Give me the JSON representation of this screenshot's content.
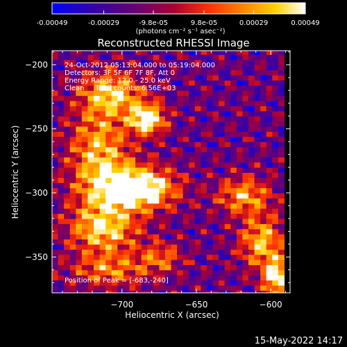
{
  "colorbar": {
    "tick_labels": [
      "-0.00049",
      "-0.00029",
      "-9.8e-05",
      "9.8e-05",
      "0.00029",
      "0.00049"
    ],
    "tick_values": [
      -0.00049,
      -0.00029,
      -9.8e-05,
      9.8e-05,
      0.00029,
      0.00049
    ],
    "unit_label": "(photons cm⁻² s⁻¹ asec⁻²)",
    "range": [
      -0.00049,
      0.00049
    ],
    "colormap": [
      "#0000ff",
      "#3300aa",
      "#660077",
      "#aa0033",
      "#ff3300",
      "#ff8800",
      "#ffd000",
      "#ffffff"
    ]
  },
  "chart_data": {
    "type": "heatmap",
    "title": "Reconstructed RHESSI Image",
    "xlabel": "Heliocentric X (arcsec)",
    "ylabel": "Heliocentric Y (arcsec)",
    "xlim": [
      -747,
      -587
    ],
    "ylim": [
      -378,
      -189
    ],
    "x_ticks": [
      -700,
      -650,
      -600
    ],
    "x_tick_labels": [
      "−700",
      "−650",
      "−600"
    ],
    "y_ticks": [
      -200,
      -250,
      -300,
      -350
    ],
    "y_tick_labels": [
      "−200",
      "−250",
      "−300",
      "−350"
    ],
    "info_lines": [
      "24-Oct-2012 05:13:04.000 to 05:19:04.000",
      "Detectors: 3F 5F 6F 7F 8F, Att 0",
      "Energy Range: 12.0 - 25.0 keV",
      "Clean     Total counts: 6.56E+03"
    ],
    "peak_text": "Position of Peak = [-683,-240]",
    "peak": [
      -683,
      -240
    ],
    "grid_x": [
      -745,
      -590
    ],
    "grid_y": [
      -378,
      -190
    ],
    "pixel_size": 4,
    "sources": [
      {
        "x": -690,
        "y": -296,
        "sx": 17,
        "sy": 11,
        "amp": 0.95
      },
      {
        "x": -683,
        "y": -242,
        "sx": 8,
        "sy": 8,
        "amp": 0.85
      },
      {
        "x": -715,
        "y": -272,
        "sx": 14,
        "sy": 30,
        "amp": 0.55
      },
      {
        "x": -706,
        "y": -222,
        "sx": 14,
        "sy": 11,
        "amp": 0.55
      },
      {
        "x": -712,
        "y": -328,
        "sx": 16,
        "sy": 13,
        "amp": 0.55
      },
      {
        "x": -708,
        "y": -360,
        "sx": 18,
        "sy": 9,
        "amp": 0.4
      },
      {
        "x": -618,
        "y": -302,
        "sx": 12,
        "sy": 10,
        "amp": 0.5
      },
      {
        "x": -606,
        "y": -338,
        "sx": 10,
        "sy": 14,
        "amp": 0.55
      },
      {
        "x": -596,
        "y": -366,
        "sx": 6,
        "sy": 10,
        "amp": 0.75
      },
      {
        "x": -674,
        "y": -350,
        "sx": 10,
        "sy": 8,
        "amp": 0.35
      }
    ],
    "background_level": 0.28,
    "texture_amplitude": 0.22
  },
  "footer": {
    "date_stamp": "15-May-2022 14:17"
  }
}
